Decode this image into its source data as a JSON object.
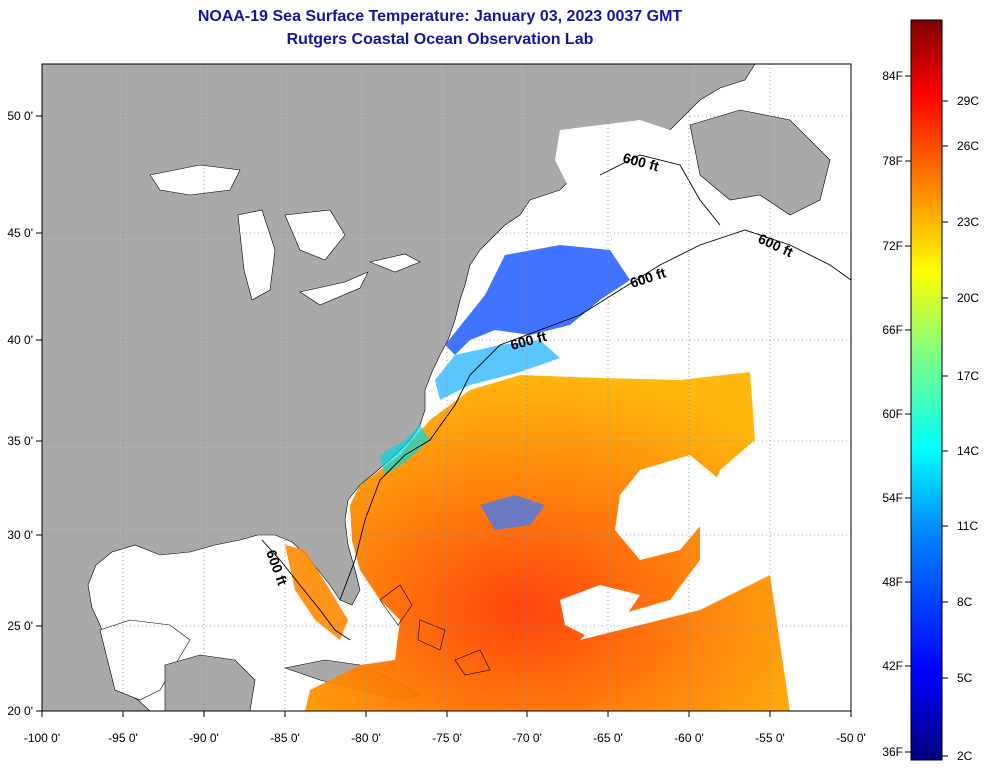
{
  "header": {
    "title": "NOAA-19 Sea Surface Temperature:  January 03, 2023 0037 GMT",
    "subtitle": "Rutgers Coastal Ocean Observation Lab"
  },
  "map": {
    "lon_labels": [
      "-100 0'",
      "-95 0'",
      "-90 0'",
      "-85 0'",
      "-80 0'",
      "-75 0'",
      "-70 0'",
      "-65 0'",
      "-60 0'",
      "-55 0'",
      "-50 0'"
    ],
    "lat_labels": [
      "20 0'",
      "25 0'",
      "30 0'",
      "35 0'",
      "40 0'",
      "45 0'",
      "50 0'"
    ],
    "contour_label": "600 ft",
    "colors": {
      "land": "#a9a9a9",
      "cloud": "#ffffff",
      "frame": "#000000"
    }
  },
  "colorbar": {
    "fahrenheit_labels": [
      "84F",
      "78F",
      "72F",
      "66F",
      "60F",
      "54F",
      "48F",
      "42F",
      "36F"
    ],
    "celsius_labels": [
      "29C",
      "26C",
      "23C",
      "20C",
      "17C",
      "14C",
      "11C",
      "8C",
      "5C",
      "2C"
    ],
    "colors": [
      "#00007f",
      "#0000ff",
      "#0080ff",
      "#00ffff",
      "#80ff80",
      "#ffff00",
      "#ff8000",
      "#ff0000",
      "#7f0000"
    ]
  }
}
